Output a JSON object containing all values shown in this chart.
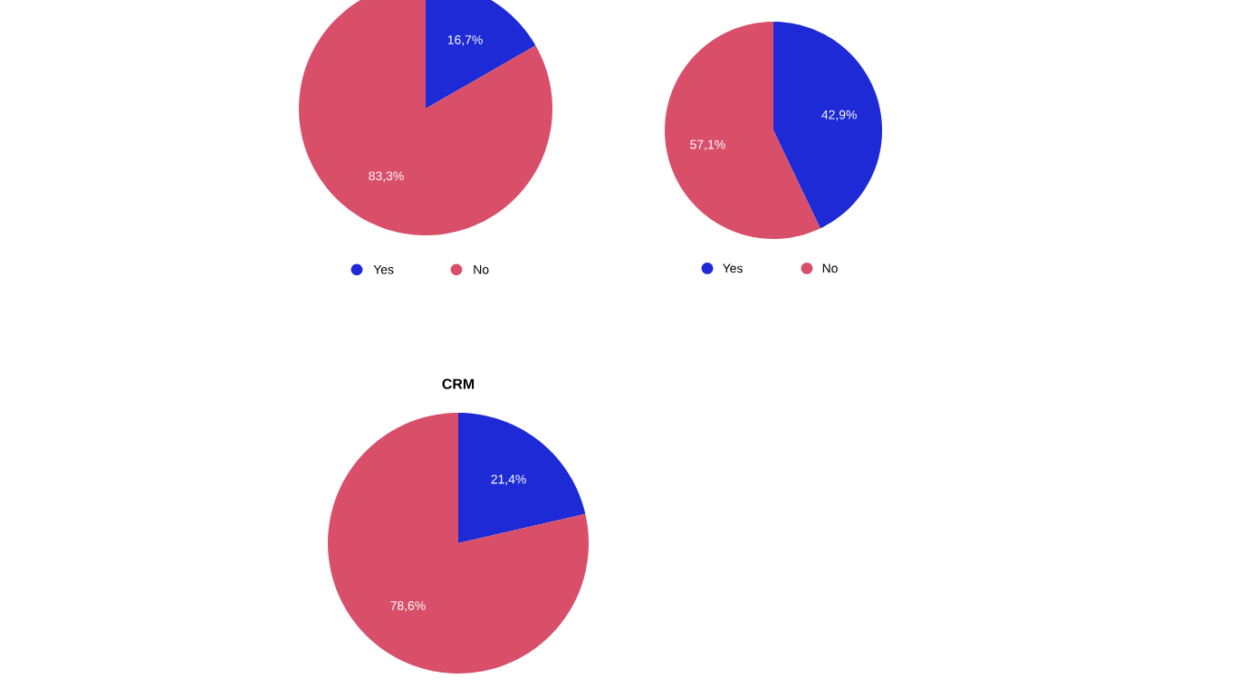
{
  "chart_data": [
    {
      "type": "pie",
      "categories": [
        "Yes",
        "No"
      ],
      "values": [
        16.7,
        83.3
      ],
      "colors": [
        "#1d2ad6",
        "#d94f6a"
      ],
      "value_labels": [
        "16,7%",
        "83,3%"
      ],
      "legend": "bottom"
    },
    {
      "type": "pie",
      "categories": [
        "Yes",
        "No"
      ],
      "values": [
        42.9,
        57.1
      ],
      "colors": [
        "#1d2ad6",
        "#d94f6a"
      ],
      "value_labels": [
        "42,9%",
        "57,1%"
      ],
      "legend": "bottom"
    },
    {
      "type": "pie",
      "title": "CRM",
      "categories": [
        null,
        null
      ],
      "values": [
        21.4,
        78.6
      ],
      "colors": [
        "#1d2ad6",
        "#d94f6a"
      ],
      "value_labels": [
        "21,4%",
        "78,6%"
      ]
    }
  ]
}
